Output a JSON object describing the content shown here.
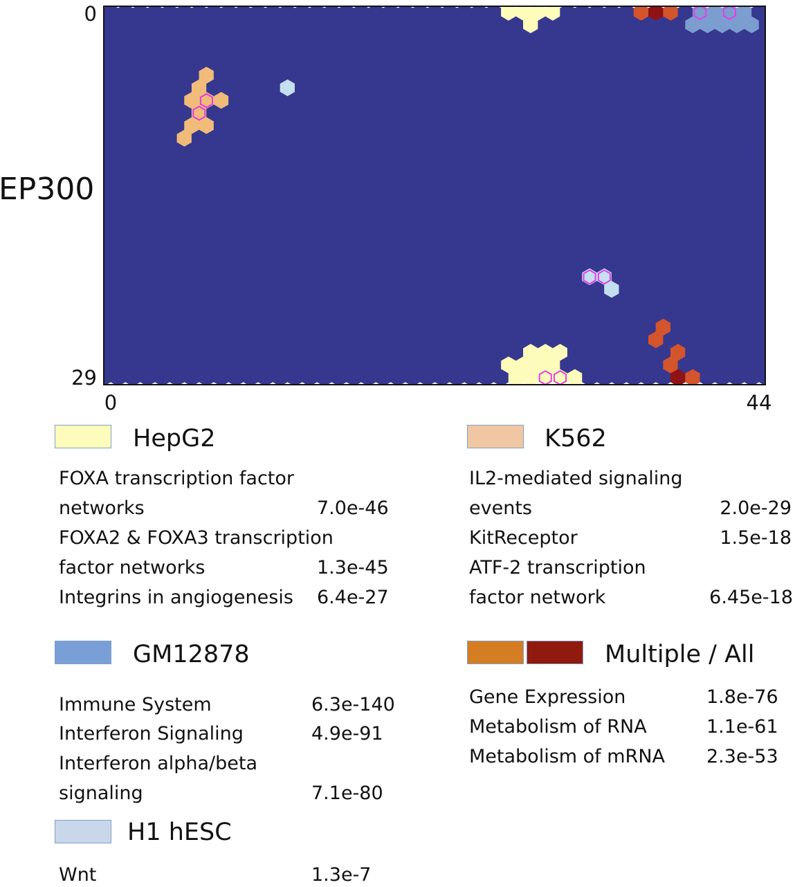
{
  "chart_data": {
    "type": "heatmap",
    "subtype": "hexagonal self-organizing map",
    "ylabel": "EP300",
    "x_ticks": [
      "0",
      "44"
    ],
    "y_ticks": [
      "0",
      "29"
    ],
    "xlim": [
      0,
      44
    ],
    "ylim": [
      0,
      29
    ],
    "colors": {
      "background": "#36388f",
      "HepG2": "#fefcba",
      "K562": "#f1bb79",
      "GM12878": "#7c9dcf",
      "H1 hESC": "#c4dff0",
      "Multiple": "#d4542c",
      "All": "#8f1217",
      "highlight_outline": "#e23ee6"
    },
    "cells": [
      {
        "group": "HepG2",
        "cells": [
          [
            27,
            0
          ],
          [
            28,
            0
          ],
          [
            29,
            0
          ],
          [
            30,
            0
          ],
          [
            28,
            1
          ],
          [
            28,
            27
          ],
          [
            29,
            27
          ],
          [
            30,
            27
          ],
          [
            27,
            28
          ],
          [
            28,
            28
          ],
          [
            29,
            28
          ],
          [
            30,
            28
          ],
          [
            27,
            29
          ],
          [
            28,
            29
          ],
          [
            29,
            29
          ],
          [
            30,
            29
          ],
          [
            31,
            29
          ]
        ]
      },
      {
        "group": "K562",
        "cells": [
          [
            6,
            5
          ],
          [
            6,
            6
          ],
          [
            5,
            7
          ],
          [
            6,
            7
          ],
          [
            7,
            7
          ],
          [
            6,
            8
          ],
          [
            5,
            9
          ],
          [
            6,
            9
          ],
          [
            5,
            10
          ]
        ]
      },
      {
        "group": "GM12878",
        "cells": [
          [
            40,
            0
          ],
          [
            41,
            0
          ],
          [
            42,
            0
          ],
          [
            43,
            0
          ],
          [
            39,
            1
          ],
          [
            40,
            1
          ],
          [
            41,
            1
          ],
          [
            42,
            1
          ],
          [
            43,
            1
          ]
        ]
      },
      {
        "group": "H1 hESC",
        "cells": [
          [
            12,
            6
          ],
          [
            32,
            21
          ],
          [
            33,
            21
          ],
          [
            34,
            22
          ]
        ]
      },
      {
        "group": "Multiple",
        "cells": [
          [
            36,
            0
          ],
          [
            38,
            0
          ],
          [
            37,
            25
          ],
          [
            37,
            26
          ],
          [
            38,
            27
          ],
          [
            38,
            28
          ],
          [
            39,
            29
          ]
        ]
      },
      {
        "group": "All",
        "cells": [
          [
            37,
            0
          ],
          [
            38,
            29
          ]
        ]
      },
      {
        "group": "highlighted",
        "cells": [
          [
            6,
            7
          ],
          [
            6,
            8
          ],
          [
            40,
            0
          ],
          [
            42,
            0
          ],
          [
            32,
            21
          ],
          [
            33,
            21
          ],
          [
            29,
            29
          ],
          [
            30,
            29
          ]
        ]
      }
    ]
  },
  "legend": {
    "hepg2": {
      "label": "HepG2",
      "color": "#fefcba",
      "pathways": [
        {
          "name1": "FOXA transcription factor",
          "name2": "networks",
          "value": "7.0e-46"
        },
        {
          "name1": "FOXA2 & FOXA3 transcription",
          "name2": "factor networks",
          "value": "1.3e-45"
        },
        {
          "name1": "Integrins in angiogenesis",
          "value": "6.4e-27"
        }
      ]
    },
    "k562": {
      "label": "K562",
      "color": "#f1c7a3",
      "pathways": [
        {
          "name1": "IL2-mediated signaling",
          "name2": "events",
          "value": "2.0e-29"
        },
        {
          "name1": "KitReceptor",
          "value": "1.5e-18"
        },
        {
          "name1": "ATF-2 transcription",
          "name2": "factor network",
          "value": "6.45e-18"
        }
      ]
    },
    "gm12878": {
      "label": "GM12878",
      "color": "#7a9fd6",
      "pathways": [
        {
          "name1": "Immune System",
          "value": "6.3e-140"
        },
        {
          "name1": "Interferon Signaling",
          "value": "4.9e-91"
        },
        {
          "name1": "Interferon alpha/beta",
          "name2": "signaling",
          "value": "7.1e-80"
        }
      ]
    },
    "multiple": {
      "label": "Multiple / All",
      "color1": "#d57d23",
      "color2": "#901a0d",
      "pathways": [
        {
          "name1": "Gene Expression",
          "value": "1.8e-76"
        },
        {
          "name1": "Metabolism of RNA",
          "value": "1.1e-61"
        },
        {
          "name1": "Metabolism of mRNA",
          "value": "2.3e-53"
        }
      ]
    },
    "h1hesc": {
      "label": "H1 hESC",
      "color": "#c8d7ea",
      "pathways": [
        {
          "name1": "Wnt",
          "value": "1.3e-7"
        }
      ]
    }
  }
}
